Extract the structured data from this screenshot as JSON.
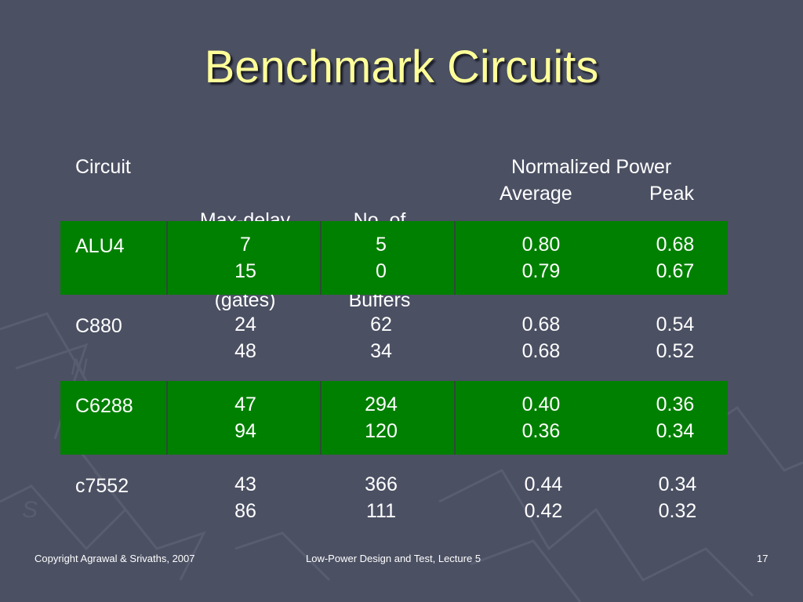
{
  "slide": {
    "title": "Benchmark Circuits",
    "headers": {
      "circuit": "Circuit",
      "max_delay_line1": "Max-delay",
      "max_delay_line2": "(gates)",
      "buffers_line1": "No. of",
      "buffers_line2": "Buffers",
      "power": "Normalized Power",
      "average": "Average",
      "peak": "Peak"
    },
    "rows": [
      {
        "circuit": "ALU4",
        "delay": [
          "7",
          "15"
        ],
        "buffers": [
          "5",
          "0"
        ],
        "average": [
          "0.80",
          "0.79"
        ],
        "peak": [
          "0.68",
          "0.67"
        ],
        "highlight": true
      },
      {
        "circuit": "C880",
        "delay": [
          "24",
          "48"
        ],
        "buffers": [
          "62",
          "34"
        ],
        "average": [
          "0.68",
          "0.68"
        ],
        "peak": [
          "0.54",
          "0.52"
        ],
        "highlight": false
      },
      {
        "circuit": "C6288",
        "delay": [
          "47",
          "94"
        ],
        "buffers": [
          "294",
          "120"
        ],
        "average": [
          "0.40",
          "0.36"
        ],
        "peak": [
          "0.36",
          "0.34"
        ],
        "highlight": true
      },
      {
        "circuit": "c7552",
        "delay": [
          "43",
          "86"
        ],
        "buffers": [
          "366",
          "111"
        ],
        "average": [
          "0.44",
          "0.42"
        ],
        "peak": [
          "0.34",
          "0.32"
        ],
        "highlight": false
      }
    ],
    "footer": {
      "copyright": "Copyright Agrawal & Srivaths, 2007",
      "course": "Low-Power Design and Test, Lecture 5",
      "page_number": "17"
    },
    "colors": {
      "background": "#4b5063",
      "title": "#ffff99",
      "highlight_row": "#008000"
    }
  }
}
